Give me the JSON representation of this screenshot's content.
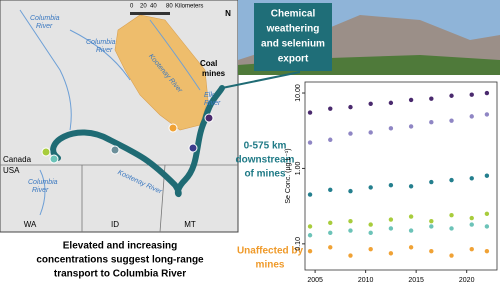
{
  "map": {
    "scale": [
      "0",
      "20",
      "40",
      "80",
      "Kilometers"
    ],
    "north": "N",
    "columbia_upper_left": [
      "Columbia",
      "River"
    ],
    "columbia_upper": [
      "Columbia",
      "River"
    ],
    "kootenay_upper": "Kootenay River",
    "coal_mines": [
      "Coal",
      "mines"
    ],
    "elk_river": [
      "Elk",
      "River"
    ],
    "kootenay_lower": "Kootenay River",
    "columbia_lower": [
      "Columbia",
      "River"
    ],
    "canada": "Canada",
    "usa": "USA",
    "states": [
      "WA",
      "ID",
      "MT"
    ]
  },
  "photo_caption": [
    "Chemical",
    "weathering",
    "and selenium",
    "export"
  ],
  "downstream_label": [
    "0-575 km",
    "downstream",
    "of mines"
  ],
  "unaffected_label": [
    "Unaffected by",
    "mines"
  ],
  "conclusion": [
    "Elevated and increasing",
    "concentrations suggest long-range",
    "transport to Columbia River"
  ],
  "chart_data": {
    "type": "scatter",
    "ylabel": "Se Conc. (µg L⁻¹)",
    "log_y": true,
    "x": [
      2004.5,
      2006.5,
      2008.5,
      2010.5,
      2012.5,
      2014.5,
      2016.5,
      2018.5,
      2020.5,
      2022
    ],
    "series": [
      {
        "color": "#4a2a6e",
        "values": [
          5.5,
          6.2,
          6.5,
          7.2,
          7.4,
          8.1,
          8.4,
          9.2,
          9.5,
          10
        ]
      },
      {
        "color": "#8f86c4",
        "values": [
          2.2,
          2.4,
          2.9,
          3.0,
          3.4,
          3.6,
          4.1,
          4.3,
          4.9,
          5.2
        ]
      },
      {
        "color": "#247f8e",
        "values": [
          0.45,
          0.52,
          0.5,
          0.56,
          0.6,
          0.58,
          0.66,
          0.7,
          0.74,
          0.8
        ]
      },
      {
        "color": "#a8cc3c",
        "values": [
          0.17,
          0.19,
          0.2,
          0.18,
          0.21,
          0.23,
          0.2,
          0.24,
          0.22,
          0.25
        ]
      },
      {
        "color": "#6cc3b8",
        "values": [
          0.13,
          0.14,
          0.15,
          0.14,
          0.16,
          0.15,
          0.17,
          0.16,
          0.18,
          0.17
        ]
      },
      {
        "color": "#f0a235",
        "values": [
          0.08,
          0.09,
          0.07,
          0.085,
          0.075,
          0.09,
          0.08,
          0.07,
          0.085,
          0.08
        ]
      }
    ],
    "xlim": [
      2004,
      2023
    ],
    "xticks": [
      2005,
      2010,
      2015,
      2020
    ],
    "ylim": [
      0.045,
      14
    ],
    "yticks": [
      {
        "value": 0.1,
        "label": "0.10"
      },
      {
        "value": 1,
        "label": "1.00"
      },
      {
        "value": 10,
        "label": "10.00"
      }
    ]
  }
}
